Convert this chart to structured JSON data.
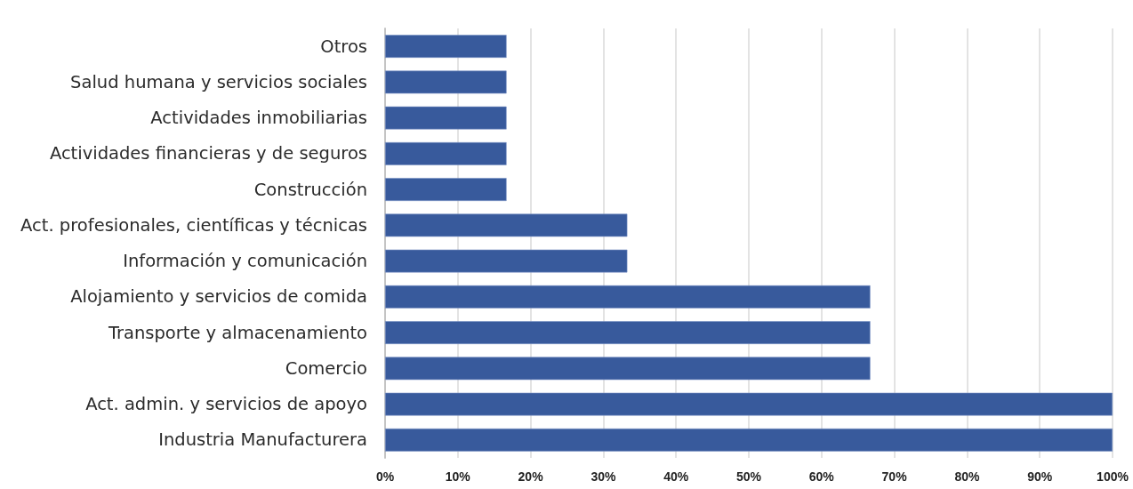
{
  "chart_data": {
    "type": "bar",
    "orientation": "horizontal",
    "categories": [
      "Otros",
      "Salud humana y servicios sociales",
      "Actividades inmobiliarias",
      "Actividades financieras y de seguros",
      "Construcción",
      "Act. profesionales, científicas y técnicas",
      "Información y comunicación",
      "Alojamiento y servicios de comida",
      "Transporte y almacenamiento",
      "Comercio",
      "Act. admin. y servicios de apoyo",
      "Industria Manufacturera"
    ],
    "values": [
      16.7,
      16.7,
      16.7,
      16.7,
      16.7,
      33.3,
      33.3,
      66.7,
      66.7,
      66.7,
      100,
      100
    ],
    "color": "#385a9c",
    "xlim": [
      0,
      100
    ],
    "xticks": [
      {
        "value": 0,
        "label": "0%"
      },
      {
        "value": 10,
        "label": "10%"
      },
      {
        "value": 20,
        "label": "20%"
      },
      {
        "value": 30,
        "label": "30%"
      },
      {
        "value": 40,
        "label": "40%"
      },
      {
        "value": 50,
        "label": "50%"
      },
      {
        "value": 60,
        "label": "60%"
      },
      {
        "value": 70,
        "label": "70%"
      },
      {
        "value": 80,
        "label": "80%"
      },
      {
        "value": 90,
        "label": "90%"
      },
      {
        "value": 100,
        "label": "100%"
      }
    ],
    "grid": "x"
  }
}
